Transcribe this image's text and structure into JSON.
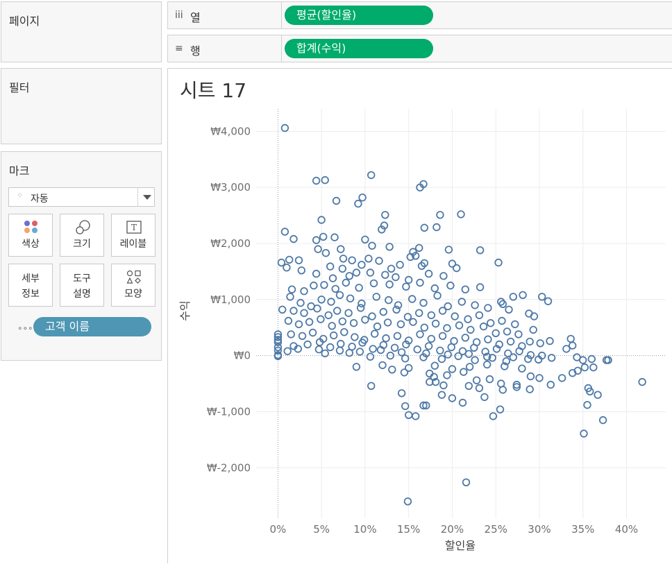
{
  "panels": {
    "pages": {
      "title": "페이지"
    },
    "filters": {
      "title": "필터"
    },
    "marks": {
      "title": "마크",
      "mark_type": "자동",
      "buttons": {
        "color": "색상",
        "size": "크기",
        "label": "레이블",
        "detail_line1": "세부",
        "detail_line2": "정보",
        "tooltip_line1": "도구",
        "tooltip_line2": "설명",
        "shape": "모양"
      },
      "detail_field": "고객 이름"
    }
  },
  "shelves": {
    "columns": {
      "label": "열",
      "pill": "평균(할인율)"
    },
    "rows": {
      "label": "행",
      "pill": "합계(수익)"
    }
  },
  "sheet": {
    "title": "시트 17"
  },
  "colors": {
    "mark": "#4e79a7",
    "dimension_pill": "#4e96b4",
    "measure_pill": "#00ab6b"
  },
  "chart_data": {
    "type": "scatter",
    "xlabel": "할인율",
    "ylabel": "수익",
    "x_ticks": [
      "0%",
      "5%",
      "10%",
      "15%",
      "20%",
      "25%",
      "30%",
      "35%",
      "40%"
    ],
    "y_ticks": [
      "₩4,000",
      "₩3,000",
      "₩2,000",
      "₩1,000",
      "₩0",
      "₩-1,000",
      "₩-2,000"
    ],
    "x_tick_values": [
      0,
      0.05,
      0.1,
      0.15,
      0.2,
      0.25,
      0.3,
      0.35,
      0.4
    ],
    "y_tick_values": [
      4000,
      3000,
      2000,
      1000,
      0,
      -1000,
      -2000
    ],
    "xlim": [
      -0.025,
      0.445
    ],
    "ylim": [
      -2900,
      4400
    ],
    "grid": true,
    "marker": "open-circle",
    "points": [
      [
        0.008,
        4060
      ],
      [
        0.044,
        3120
      ],
      [
        0.054,
        3130
      ],
      [
        0.107,
        3220
      ],
      [
        0.097,
        2820
      ],
      [
        0.092,
        2710
      ],
      [
        0.163,
        3000
      ],
      [
        0.167,
        3060
      ],
      [
        0.067,
        2760
      ],
      [
        0.123,
        2510
      ],
      [
        0.186,
        2510
      ],
      [
        0.21,
        2520
      ],
      [
        0.008,
        2210
      ],
      [
        0.018,
        2080
      ],
      [
        0.05,
        2420
      ],
      [
        0.119,
        2250
      ],
      [
        0.122,
        2320
      ],
      [
        0.168,
        2280
      ],
      [
        0.182,
        2290
      ],
      [
        0.052,
        2120
      ],
      [
        0.044,
        2060
      ],
      [
        0.065,
        2110
      ],
      [
        0.108,
        1960
      ],
      [
        0.128,
        1940
      ],
      [
        0.162,
        1920
      ],
      [
        0.155,
        1850
      ],
      [
        0.196,
        1890
      ],
      [
        0.232,
        1880
      ],
      [
        0.1,
        2070
      ],
      [
        0.046,
        1900
      ],
      [
        0.055,
        1830
      ],
      [
        0.072,
        1900
      ],
      [
        0.004,
        1660
      ],
      [
        0.013,
        1710
      ],
      [
        0.024,
        1700
      ],
      [
        0.01,
        1570
      ],
      [
        0.027,
        1520
      ],
      [
        0.074,
        1550
      ],
      [
        0.09,
        1480
      ],
      [
        0.116,
        1690
      ],
      [
        0.13,
        1550
      ],
      [
        0.14,
        1620
      ],
      [
        0.152,
        1760
      ],
      [
        0.158,
        1780
      ],
      [
        0.165,
        1600
      ],
      [
        0.168,
        1650
      ],
      [
        0.2,
        1640
      ],
      [
        0.205,
        1560
      ],
      [
        0.253,
        1660
      ],
      [
        0.075,
        1730
      ],
      [
        0.085,
        1700
      ],
      [
        0.096,
        1620
      ],
      [
        0.104,
        1730
      ],
      [
        0.06,
        1590
      ],
      [
        0.044,
        1460
      ],
      [
        0.063,
        1380
      ],
      [
        0.082,
        1420
      ],
      [
        0.106,
        1480
      ],
      [
        0.123,
        1440
      ],
      [
        0.135,
        1400
      ],
      [
        0.15,
        1350
      ],
      [
        0.173,
        1460
      ],
      [
        0.19,
        1420
      ],
      [
        0.016,
        1180
      ],
      [
        0.03,
        1150
      ],
      [
        0.041,
        1250
      ],
      [
        0.053,
        1260
      ],
      [
        0.066,
        1190
      ],
      [
        0.078,
        1300
      ],
      [
        0.093,
        1210
      ],
      [
        0.11,
        1290
      ],
      [
        0.128,
        1270
      ],
      [
        0.147,
        1230
      ],
      [
        0.163,
        1300
      ],
      [
        0.18,
        1200
      ],
      [
        0.198,
        1250
      ],
      [
        0.215,
        1180
      ],
      [
        0.232,
        1220
      ],
      [
        0.258,
        920
      ],
      [
        0.27,
        1050
      ],
      [
        0.281,
        1080
      ],
      [
        0.288,
        750
      ],
      [
        0.294,
        700
      ],
      [
        0.303,
        1050
      ],
      [
        0.31,
        970
      ],
      [
        0.014,
        1050
      ],
      [
        0.026,
        940
      ],
      [
        0.038,
        880
      ],
      [
        0.05,
        1000
      ],
      [
        0.061,
        960
      ],
      [
        0.071,
        1080
      ],
      [
        0.083,
        1020
      ],
      [
        0.096,
        930
      ],
      [
        0.113,
        1050
      ],
      [
        0.127,
        990
      ],
      [
        0.138,
        900
      ],
      [
        0.154,
        1010
      ],
      [
        0.167,
        940
      ],
      [
        0.183,
        1070
      ],
      [
        0.195,
        880
      ],
      [
        0.211,
        960
      ],
      [
        0.226,
        900
      ],
      [
        0.241,
        850
      ],
      [
        0.256,
        960
      ],
      [
        0.265,
        820
      ],
      [
        0.005,
        820
      ],
      [
        0.018,
        800
      ],
      [
        0.03,
        760
      ],
      [
        0.045,
        840
      ],
      [
        0.058,
        720
      ],
      [
        0.068,
        800
      ],
      [
        0.081,
        760
      ],
      [
        0.095,
        850
      ],
      [
        0.108,
        700
      ],
      [
        0.121,
        780
      ],
      [
        0.136,
        820
      ],
      [
        0.149,
        690
      ],
      [
        0.162,
        760
      ],
      [
        0.176,
        720
      ],
      [
        0.189,
        800
      ],
      [
        0.203,
        700
      ],
      [
        0.218,
        650
      ],
      [
        0.231,
        720
      ],
      [
        0.244,
        580
      ],
      [
        0.257,
        620
      ],
      [
        0.272,
        560
      ],
      [
        0.293,
        460
      ],
      [
        0.012,
        620
      ],
      [
        0.024,
        560
      ],
      [
        0.036,
        600
      ],
      [
        0.049,
        650
      ],
      [
        0.062,
        530
      ],
      [
        0.074,
        610
      ],
      [
        0.087,
        580
      ],
      [
        0.1,
        640
      ],
      [
        0.114,
        520
      ],
      [
        0.126,
        590
      ],
      [
        0.141,
        560
      ],
      [
        0.155,
        600
      ],
      [
        0.168,
        500
      ],
      [
        0.181,
        570
      ],
      [
        0.194,
        490
      ],
      [
        0.208,
        540
      ],
      [
        0.221,
        460
      ],
      [
        0.236,
        520
      ],
      [
        0.25,
        400
      ],
      [
        0.263,
        430
      ],
      [
        0.276,
        380
      ],
      [
        0.289,
        250
      ],
      [
        0.301,
        220
      ],
      [
        0.312,
        260
      ],
      [
        0.336,
        300
      ],
      [
        0.338,
        180
      ],
      [
        0.331,
        120
      ],
      [
        0.0,
        380
      ],
      [
        0.0,
        330
      ],
      [
        0.0,
        280
      ],
      [
        0.0,
        240
      ],
      [
        0.0,
        150
      ],
      [
        0.0,
        90
      ],
      [
        0.0,
        10
      ],
      [
        0.0,
        -10
      ],
      [
        0.015,
        380
      ],
      [
        0.028,
        350
      ],
      [
        0.04,
        410
      ],
      [
        0.052,
        300
      ],
      [
        0.064,
        360
      ],
      [
        0.076,
        420
      ],
      [
        0.088,
        330
      ],
      [
        0.099,
        280
      ],
      [
        0.111,
        390
      ],
      [
        0.124,
        310
      ],
      [
        0.137,
        350
      ],
      [
        0.15,
        270
      ],
      [
        0.163,
        380
      ],
      [
        0.176,
        300
      ],
      [
        0.189,
        350
      ],
      [
        0.202,
        260
      ],
      [
        0.215,
        320
      ],
      [
        0.228,
        240
      ],
      [
        0.241,
        290
      ],
      [
        0.254,
        200
      ],
      [
        0.267,
        250
      ],
      [
        0.28,
        170
      ],
      [
        0.018,
        170
      ],
      [
        0.034,
        200
      ],
      [
        0.048,
        240
      ],
      [
        0.06,
        150
      ],
      [
        0.072,
        210
      ],
      [
        0.085,
        160
      ],
      [
        0.097,
        230
      ],
      [
        0.109,
        120
      ],
      [
        0.121,
        190
      ],
      [
        0.134,
        140
      ],
      [
        0.147,
        200
      ],
      [
        0.16,
        110
      ],
      [
        0.173,
        170
      ],
      [
        0.186,
        90
      ],
      [
        0.199,
        150
      ],
      [
        0.212,
        80
      ],
      [
        0.225,
        140
      ],
      [
        0.238,
        70
      ],
      [
        0.251,
        120
      ],
      [
        0.264,
        40
      ],
      [
        0.277,
        80
      ],
      [
        0.29,
        10
      ],
      [
        0.303,
        0
      ],
      [
        0.314,
        -40
      ],
      [
        0.343,
        -30
      ],
      [
        0.35,
        -80
      ],
      [
        0.36,
        -60
      ],
      [
        0.377,
        -80
      ],
      [
        0.379,
        -80
      ],
      [
        0.054,
        40
      ],
      [
        0.082,
        50
      ],
      [
        0.106,
        -20
      ],
      [
        0.129,
        0
      ],
      [
        0.146,
        -50
      ],
      [
        0.167,
        -30
      ],
      [
        0.188,
        -60
      ],
      [
        0.207,
        -10
      ],
      [
        0.226,
        -80
      ],
      [
        0.246,
        -40
      ],
      [
        0.262,
        -100
      ],
      [
        0.287,
        -60
      ],
      [
        0.011,
        80
      ],
      [
        0.023,
        120
      ],
      [
        0.047,
        110
      ],
      [
        0.071,
        90
      ],
      [
        0.094,
        70
      ],
      [
        0.118,
        100
      ],
      [
        0.142,
        60
      ],
      [
        0.17,
        40
      ],
      [
        0.195,
        20
      ],
      [
        0.219,
        30
      ],
      [
        0.24,
        -20
      ],
      [
        0.27,
        -30
      ],
      [
        0.299,
        -70
      ],
      [
        0.09,
        -200
      ],
      [
        0.12,
        -170
      ],
      [
        0.15,
        -220
      ],
      [
        0.18,
        -180
      ],
      [
        0.2,
        -240
      ],
      [
        0.22,
        -200
      ],
      [
        0.24,
        -160
      ],
      [
        0.26,
        -190
      ],
      [
        0.28,
        -230
      ],
      [
        0.131,
        -250
      ],
      [
        0.145,
        -300
      ],
      [
        0.174,
        -320
      ],
      [
        0.179,
        -380
      ],
      [
        0.194,
        -350
      ],
      [
        0.213,
        -290
      ],
      [
        0.228,
        -440
      ],
      [
        0.243,
        -420
      ],
      [
        0.256,
        -500
      ],
      [
        0.274,
        -520
      ],
      [
        0.29,
        -370
      ],
      [
        0.313,
        -520
      ],
      [
        0.344,
        -270
      ],
      [
        0.352,
        -210
      ],
      [
        0.362,
        -210
      ],
      [
        0.174,
        -470
      ],
      [
        0.181,
        -470
      ],
      [
        0.19,
        -530
      ],
      [
        0.219,
        -540
      ],
      [
        0.231,
        -580
      ],
      [
        0.237,
        -740
      ],
      [
        0.107,
        -540
      ],
      [
        0.188,
        -700
      ],
      [
        0.2,
        -760
      ],
      [
        0.212,
        -840
      ],
      [
        0.258,
        -610
      ],
      [
        0.274,
        -560
      ],
      [
        0.289,
        -600
      ],
      [
        0.3,
        -400
      ],
      [
        0.326,
        -400
      ],
      [
        0.338,
        -310
      ],
      [
        0.356,
        -580
      ],
      [
        0.358,
        -640
      ],
      [
        0.367,
        -700
      ],
      [
        0.418,
        -470
      ],
      [
        0.142,
        -670
      ],
      [
        0.146,
        -900
      ],
      [
        0.15,
        -1060
      ],
      [
        0.158,
        -1080
      ],
      [
        0.167,
        -890
      ],
      [
        0.17,
        -890
      ],
      [
        0.247,
        -1080
      ],
      [
        0.255,
        -960
      ],
      [
        0.355,
        -880
      ],
      [
        0.351,
        -1390
      ],
      [
        0.373,
        -1150
      ],
      [
        0.216,
        -2260
      ],
      [
        0.149,
        -2600
      ]
    ]
  }
}
